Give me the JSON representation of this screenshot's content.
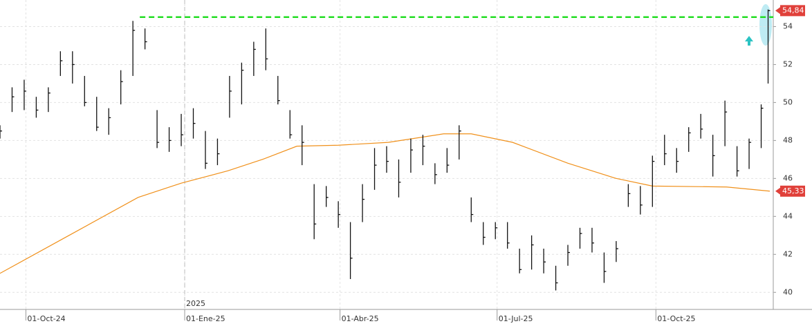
{
  "chart_data": {
    "type": "ohlc",
    "xlim": [
      "2024-09-16",
      "2025-12-08"
    ],
    "ylim": [
      39.1,
      55.4
    ],
    "yticks": [
      40,
      42,
      44,
      46,
      48,
      50,
      52,
      54
    ],
    "xticks": [
      {
        "value": "2024-10-01",
        "label": "01-Oct-24"
      },
      {
        "value": "2025-01-01",
        "label": "01-Ene-25"
      },
      {
        "value": "2025-04-01",
        "label": "01-Abr-25"
      },
      {
        "value": "2025-07-01",
        "label": "01-Jul-25"
      },
      {
        "value": "2025-10-01",
        "label": "01-Oct-25"
      }
    ],
    "year_marker": {
      "value": "2025-01-01",
      "label": "2025"
    },
    "grid": true,
    "color": "#111111",
    "x": [
      "2024-09-16",
      "2024-09-23",
      "2024-09-30",
      "2024-10-07",
      "2024-10-14",
      "2024-10-21",
      "2024-10-28",
      "2024-11-04",
      "2024-11-11",
      "2024-11-18",
      "2024-11-25",
      "2024-12-02",
      "2024-12-09",
      "2024-12-16",
      "2024-12-23",
      "2024-12-30",
      "2025-01-06",
      "2025-01-13",
      "2025-01-20",
      "2025-01-27",
      "2025-02-03",
      "2025-02-10",
      "2025-02-17",
      "2025-02-24",
      "2025-03-03",
      "2025-03-10",
      "2025-03-17",
      "2025-03-24",
      "2025-03-31",
      "2025-04-07",
      "2025-04-14",
      "2025-04-21",
      "2025-04-28",
      "2025-05-05",
      "2025-05-12",
      "2025-05-19",
      "2025-05-26",
      "2025-06-02",
      "2025-06-09",
      "2025-06-16",
      "2025-06-23",
      "2025-06-30",
      "2025-07-07",
      "2025-07-14",
      "2025-07-21",
      "2025-07-28",
      "2025-08-04",
      "2025-08-11",
      "2025-08-18",
      "2025-08-25",
      "2025-09-01",
      "2025-09-08",
      "2025-09-15",
      "2025-09-22",
      "2025-09-29",
      "2025-10-06",
      "2025-10-13",
      "2025-10-20",
      "2025-10-27",
      "2025-11-03",
      "2025-11-10",
      "2025-11-17",
      "2025-11-24",
      "2025-12-01",
      "2025-12-05"
    ],
    "high": [
      48.8,
      50.8,
      51.2,
      50.3,
      50.8,
      52.7,
      52.7,
      51.4,
      50.3,
      49.7,
      51.7,
      54.3,
      53.9,
      49.6,
      48.7,
      49.4,
      49.7,
      48.5,
      48.1,
      51.4,
      52.1,
      53.2,
      53.9,
      51.4,
      49.6,
      48.8,
      45.7,
      45.6,
      44.8,
      43.7,
      45.7,
      47.6,
      47.7,
      47.0,
      48.1,
      48.3,
      46.8,
      47.6,
      48.8,
      45.0,
      43.7,
      43.7,
      43.7,
      42.3,
      43.0,
      42.3,
      41.4,
      42.5,
      43.4,
      43.4,
      42.1,
      42.7,
      45.7,
      45.6,
      47.2,
      48.3,
      47.6,
      48.7,
      49.4,
      48.3,
      50.1,
      47.7,
      48.1,
      49.9,
      54.9
    ],
    "low": [
      48.1,
      49.5,
      49.6,
      49.2,
      49.5,
      51.4,
      51.0,
      49.8,
      48.5,
      48.3,
      49.9,
      51.4,
      52.8,
      47.6,
      47.4,
      47.7,
      48.1,
      46.5,
      46.7,
      49.2,
      49.9,
      51.4,
      51.7,
      49.9,
      48.1,
      46.7,
      42.8,
      44.5,
      43.4,
      40.7,
      43.7,
      45.4,
      46.3,
      45.0,
      46.3,
      46.7,
      45.7,
      46.3,
      47.0,
      43.7,
      42.5,
      42.8,
      42.3,
      41.0,
      41.2,
      41.0,
      40.1,
      41.4,
      42.3,
      42.1,
      40.5,
      41.6,
      44.5,
      44.1,
      44.5,
      46.7,
      46.3,
      47.4,
      48.1,
      46.1,
      47.7,
      46.1,
      46.5,
      47.6,
      51.0
    ],
    "close": [
      48.5,
      50.3,
      50.6,
      49.6,
      50.5,
      52.2,
      52.0,
      50.0,
      48.7,
      49.2,
      51.1,
      53.8,
      53.2,
      47.9,
      48.0,
      48.3,
      48.9,
      46.8,
      47.3,
      50.6,
      51.7,
      52.8,
      52.3,
      50.1,
      48.3,
      47.9,
      43.6,
      45.0,
      44.1,
      41.8,
      44.9,
      46.7,
      46.9,
      45.8,
      47.5,
      47.7,
      46.2,
      46.7,
      48.5,
      44.1,
      42.9,
      43.4,
      42.6,
      41.2,
      42.5,
      41.6,
      40.5,
      42.1,
      43.1,
      42.6,
      41.1,
      42.3,
      45.2,
      44.6,
      46.9,
      47.3,
      46.9,
      48.4,
      48.6,
      47.2,
      49.5,
      46.4,
      47.9,
      49.7,
      54.84
    ],
    "ma": {
      "color": "#f0901a",
      "x": [
        "2024-09-16",
        "2024-10-26",
        "2024-12-05",
        "2024-12-30",
        "2025-01-26",
        "2025-02-15",
        "2025-03-07",
        "2025-03-31",
        "2025-04-29",
        "2025-05-31",
        "2025-06-16",
        "2025-07-10",
        "2025-08-11",
        "2025-09-08",
        "2025-09-29",
        "2025-11-11",
        "2025-12-06"
      ],
      "values": [
        41.0,
        43.0,
        45.0,
        45.75,
        46.4,
        47.0,
        47.7,
        47.75,
        47.9,
        48.35,
        48.35,
        47.9,
        46.8,
        46.0,
        45.6,
        45.55,
        45.33
      ]
    },
    "resistance": {
      "value": 54.5,
      "from": "2024-12-06",
      "color": "#22dd22"
    },
    "price_tags": [
      {
        "value": 54.84,
        "label": "54,84"
      },
      {
        "value": 45.33,
        "label": "45,33"
      }
    ]
  }
}
